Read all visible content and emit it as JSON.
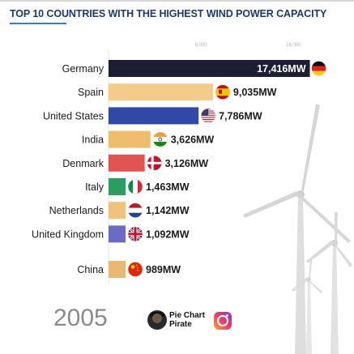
{
  "header": {
    "title": "TOP 10 COUNTRIES WITH THE HIGHEST WIND POWER CAPACITY"
  },
  "footer": {
    "year": "2005",
    "brand_line1": "Pie Chart",
    "brand_line2": "Pirate",
    "brand_icon": "pirate-avatar-icon",
    "social_icon": "instagram-icon"
  },
  "colors": {
    "title": "#1a3a6b",
    "accent": "#2e7bd0",
    "axis_tick": "#b0b0b0"
  },
  "chart_data": {
    "type": "bar",
    "orientation": "horizontal",
    "title": "TOP 10 COUNTRIES WITH THE HIGHEST WIND POWER CAPACITY",
    "xlim": [
      0,
      18500
    ],
    "x_ticks": [
      8000,
      16000
    ],
    "x_tick_labels": [
      "8,000",
      "16,000"
    ],
    "grid": false,
    "categories": [
      "Germany",
      "Spain",
      "United States",
      "India",
      "Denmark",
      "Italy",
      "Netherlands",
      "United Kingdom",
      "China"
    ],
    "values": [
      17416,
      9035,
      7786,
      3626,
      3126,
      1463,
      1142,
      1092,
      989
    ],
    "value_labels": [
      "17,416MW",
      "9,035MW",
      "7,786MW",
      "3,626MW",
      "3,126MW",
      "1,463MW",
      "1,142MW",
      "1,092MW",
      "989MW"
    ],
    "bar_colors": [
      "#1c1f33",
      "#f3cc8b",
      "#3149a6",
      "#eebe6d",
      "#e25454",
      "#2e9c62",
      "#efc37c",
      "#6a6cc4",
      "#e9b872"
    ],
    "flags": [
      "germany-flag-icon",
      "spain-flag-icon",
      "usa-flag-icon",
      "india-flag-icon",
      "denmark-flag-icon",
      "italy-flag-icon",
      "netherlands-flag-icon",
      "uk-flag-icon",
      "china-flag-icon"
    ]
  }
}
